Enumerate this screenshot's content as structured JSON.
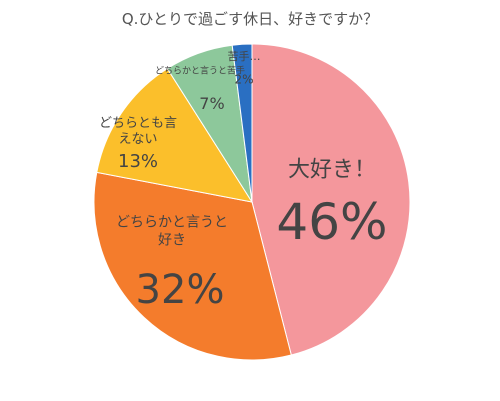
{
  "chart_data": {
    "type": "pie",
    "title": "Q.ひとりで過ごす休日、好きですか？",
    "categories": [
      "大好き！",
      "どちらかと言うと好き",
      "どちらとも言えない",
      "どちらかと言うと苦手",
      "苦手…"
    ],
    "values": [
      46,
      32,
      13,
      7,
      2
    ],
    "value_labels": [
      "46%",
      "32%",
      "13%",
      "7%",
      "2%"
    ],
    "colors": [
      "#f4979c",
      "#f47c2c",
      "#fbbf2b",
      "#8dc89b",
      "#2a6fc2"
    ]
  }
}
